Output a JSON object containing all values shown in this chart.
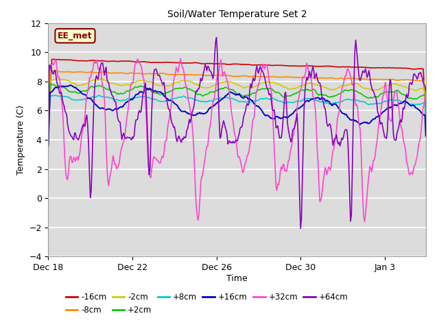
{
  "title": "Soil/Water Temperature Set 2",
  "xlabel": "Time",
  "ylabel": "Temperature (C)",
  "ylim": [
    -4,
    12
  ],
  "yticks": [
    -4,
    -2,
    0,
    2,
    4,
    6,
    8,
    10,
    12
  ],
  "background_color": "#dcdcdc",
  "plot_bg_color": "#dcdcdc",
  "fig_bg_color": "#ffffff",
  "annotation_text": "EE_met",
  "annotation_box_color": "#ffffcc",
  "annotation_border_color": "#8b0000",
  "series_colors": {
    "-16cm": "#cc0000",
    "-8cm": "#ff8800",
    "-2cm": "#cccc00",
    "+2cm": "#00cc00",
    "+8cm": "#00cccc",
    "+16cm": "#0000cc",
    "+32cm": "#ff44cc",
    "+64cm": "#8800bb"
  },
  "xtick_positions": [
    0,
    96,
    192,
    288,
    384
  ],
  "xtick_labels": [
    "Dec 18",
    "Dec 22",
    "Dec 26",
    "Dec 30",
    "Jan 3"
  ],
  "n_points": 432
}
